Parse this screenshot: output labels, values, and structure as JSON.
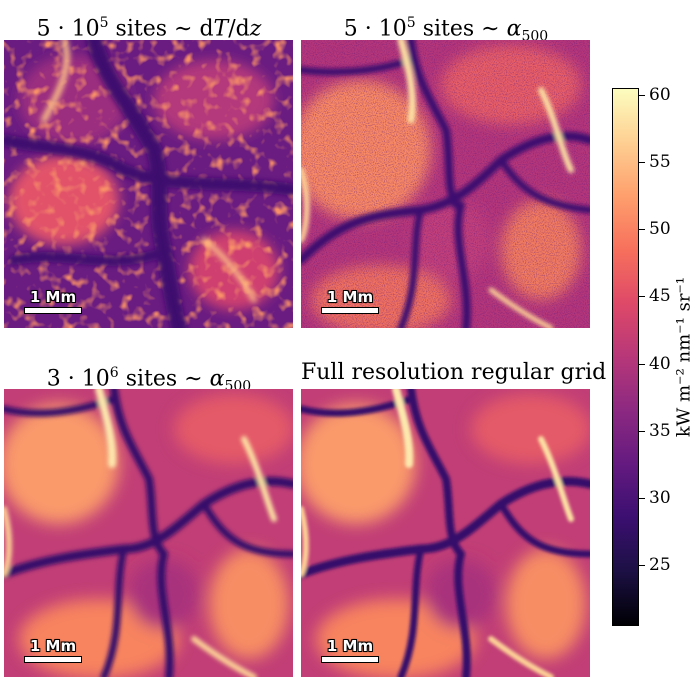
{
  "chart_data": [
    {
      "type": "heatmap",
      "title": "5 · 10⁵ sites ∼ dT/dz",
      "title_parts": [
        "5 · 10",
        "5",
        " sites ∼ d",
        "T",
        "/d",
        "z"
      ],
      "scalebar": "1 Mm",
      "palette": "magma"
    },
    {
      "type": "heatmap",
      "title": "5 · 10⁵ sites ∼ α₅₀₀",
      "title_parts": [
        "5 · 10",
        "5",
        " sites ∼ ",
        "α",
        "500"
      ],
      "scalebar": "1 Mm",
      "palette": "magma"
    },
    {
      "type": "heatmap",
      "title": "3 · 10⁶ sites ∼ α₅₀₀",
      "title_parts": [
        "3 · 10",
        "6",
        " sites ∼ ",
        "α",
        "500"
      ],
      "scalebar": "1 Mm",
      "palette": "magma"
    },
    {
      "type": "heatmap",
      "title": "Full resolution regular grid",
      "scalebar": "1 Mm",
      "palette": "magma"
    }
  ],
  "colorbar": {
    "label": "kW m⁻² nm⁻¹ sr⁻¹",
    "range": [
      20.5,
      60.5
    ],
    "ticks": [
      "25",
      "30",
      "35",
      "40",
      "45",
      "50",
      "55",
      "60"
    ],
    "tick_values": [
      25,
      30,
      35,
      40,
      45,
      50,
      55,
      60
    ],
    "colormap": "magma"
  },
  "colors": {
    "low": "#000004",
    "mid": "#b73779",
    "high": "#fcfdbf"
  }
}
